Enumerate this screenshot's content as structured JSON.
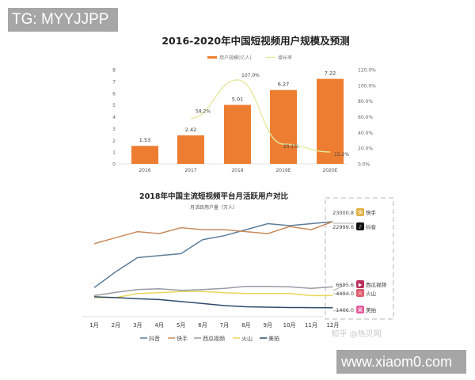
{
  "watermarks": {
    "top_left": "TG: MYYJJPP",
    "bottom_right": "www.xiaom0.com",
    "zhihu": "知乎 @热贝网"
  },
  "colors": {
    "bar": "#ed7d31",
    "growth_line": "#e2eba0",
    "douyin": "#5b7d9a",
    "kuaishou": "#c98a5c",
    "xigua": "#9a9aa6",
    "huoshan": "#e8d75a",
    "meipai": "#2f4a6b",
    "dashed_box": "#b5b5b5"
  },
  "chart_data": [
    {
      "type": "bar",
      "title": "2016-2020年中国短视频用户规模及预测",
      "legend": [
        "用户规模(亿人)",
        "增长率"
      ],
      "legend_position": "top",
      "categories": [
        "2016",
        "2017",
        "2018",
        "2019E",
        "2020E"
      ],
      "series": [
        {
          "name": "用户规模(亿人)",
          "type": "bar",
          "axis": "left",
          "values": [
            1.53,
            2.42,
            5.01,
            6.27,
            7.22
          ],
          "labels": [
            "1.53",
            "2.42",
            "5.01",
            "6.27",
            "7.22"
          ]
        },
        {
          "name": "增长率",
          "type": "line",
          "axis": "right",
          "values": [
            null,
            58.2,
            107.0,
            25.1,
            15.2
          ],
          "labels": [
            "",
            "58.2%",
            "107.0%",
            "25.1%",
            "15.2%"
          ]
        }
      ],
      "ylim_left": [
        0,
        8
      ],
      "yticks_left": [
        "0",
        "1",
        "2",
        "3",
        "4",
        "5",
        "6",
        "7",
        "8"
      ],
      "ylim_right": [
        0,
        120
      ],
      "yticks_right": [
        "0.0%",
        "20.0%",
        "40.0%",
        "60.0%",
        "80.0%",
        "100.0%",
        "120.0%"
      ],
      "grid": false
    },
    {
      "type": "line",
      "title": "2018年中国主流短视频平台月活跃用户对比",
      "subtitle": "月活跃用户量（万人）",
      "categories": [
        "1月",
        "2月",
        "3月",
        "4月",
        "5月",
        "6月",
        "7月",
        "8月",
        "9月",
        "10月",
        "11月",
        "12月"
      ],
      "series": [
        {
          "name": "抖音",
          "values": [
            6500,
            10500,
            14000,
            14500,
            15000,
            18500,
            19500,
            21000,
            22500,
            22000,
            22500,
            22999.6
          ]
        },
        {
          "name": "快手",
          "values": [
            17500,
            19000,
            20500,
            20000,
            21500,
            21000,
            21000,
            20500,
            20000,
            21800,
            21000,
            23000.8
          ]
        },
        {
          "name": "西瓜视频",
          "values": [
            4500,
            5300,
            6000,
            6200,
            5800,
            6000,
            6300,
            6800,
            6800,
            6700,
            6300,
            6695.6
          ]
        },
        {
          "name": "火山",
          "values": [
            4000,
            4000,
            5000,
            5200,
            5500,
            5500,
            5200,
            5000,
            5000,
            5000,
            4500,
            4494.0
          ]
        },
        {
          "name": "美拍",
          "values": [
            4200,
            4000,
            3700,
            3500,
            3000,
            2500,
            2000,
            1700,
            1600,
            1500,
            1480,
            1466.0
          ]
        }
      ],
      "end_labels": [
        {
          "value": "23000.8",
          "app": "快手"
        },
        {
          "value": "22999.6",
          "app": "抖音"
        },
        {
          "value": "6695.6",
          "app": "西瓜视频"
        },
        {
          "value": "4494.0",
          "app": "火山"
        },
        {
          "value": "1466.0",
          "app": "美拍"
        }
      ],
      "legend": [
        "抖音",
        "快手",
        "西瓜视频",
        "火山",
        "美拍"
      ],
      "legend_position": "bottom",
      "grid": false
    }
  ]
}
